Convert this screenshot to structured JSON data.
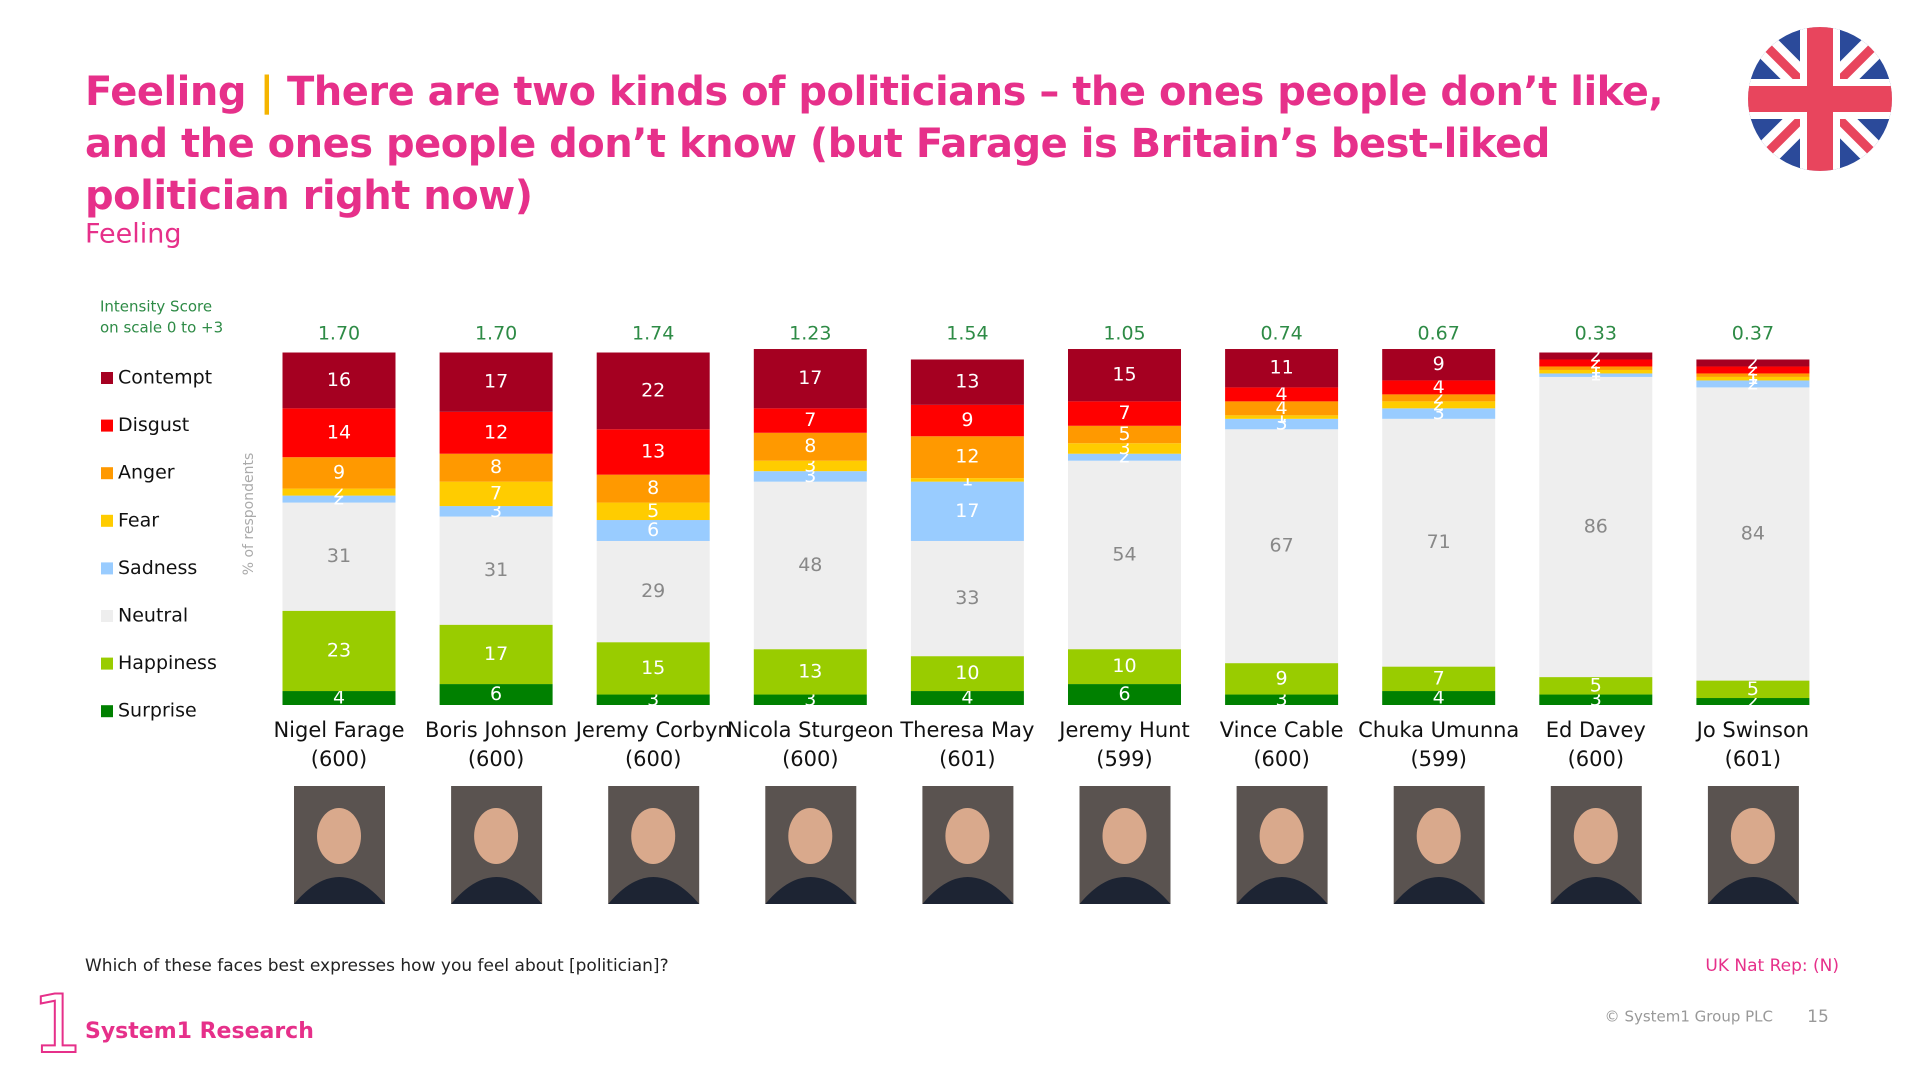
{
  "header": {
    "title_prefix": "Feeling",
    "separator": "|",
    "title": "There are two kinds of politicians – the ones people don’t like, and the ones people don’t know (but Farage is Britain’s best-liked politician right now)"
  },
  "chart_data": {
    "type": "stacked-bar",
    "subtitle": "Feeling",
    "score_label": [
      "Intensity Score",
      "on scale 0 to +3"
    ],
    "y_label": "% of respondents",
    "categories": [
      "Nigel Farage",
      "Boris Johnson",
      "Jeremy Corbyn",
      "Nicola Sturgeon",
      "Theresa May",
      "Jeremy Hunt",
      "Vince Cable",
      "Chuka Umunna",
      "Ed Davey",
      "Jo Swinson"
    ],
    "sample_sizes": [
      "(600)",
      "(600)",
      "(600)",
      "(600)",
      "(601)",
      "(599)",
      "(600)",
      "(599)",
      "(600)",
      "(601)"
    ],
    "intensity_scores": [
      1.7,
      1.7,
      1.74,
      1.23,
      1.54,
      1.05,
      0.74,
      0.67,
      0.33,
      0.37
    ],
    "intensity_labels": [
      "1.70",
      "1.70",
      "1.74",
      "1.23",
      "1.54",
      "1.05",
      "0.74",
      "0.67",
      "0.33",
      "0.37"
    ],
    "ylim": [
      0,
      100
    ],
    "series": [
      {
        "name": "Contempt",
        "color": "#a50021",
        "values": [
          16,
          17,
          22,
          17,
          13,
          15,
          11,
          9,
          2,
          2
        ]
      },
      {
        "name": "Disgust",
        "color": "#ff0000",
        "values": [
          14,
          12,
          13,
          7,
          9,
          7,
          4,
          4,
          2,
          2
        ]
      },
      {
        "name": "Anger",
        "color": "#ff9900",
        "values": [
          9,
          8,
          8,
          8,
          12,
          5,
          4,
          2,
          1,
          1
        ]
      },
      {
        "name": "Fear",
        "color": "#ffcc00",
        "values": [
          2,
          7,
          5,
          3,
          1,
          3,
          1,
          2,
          1,
          1
        ]
      },
      {
        "name": "Sadness",
        "color": "#99ccff",
        "values": [
          2,
          3,
          6,
          3,
          17,
          2,
          3,
          3,
          1,
          2
        ]
      },
      {
        "name": "Neutral",
        "color": "#eeeeee",
        "values": [
          31,
          31,
          29,
          48,
          33,
          54,
          67,
          71,
          86,
          84
        ]
      },
      {
        "name": "Happiness",
        "color": "#99cc00",
        "values": [
          23,
          17,
          15,
          13,
          10,
          10,
          9,
          7,
          5,
          5
        ]
      },
      {
        "name": "Surprise",
        "color": "#008000",
        "values": [
          4,
          6,
          3,
          3,
          4,
          6,
          3,
          4,
          3,
          2
        ]
      }
    ]
  },
  "footer": {
    "question": "Which of these faces best expresses how you feel about [politician]?",
    "base": "UK Nat Rep: (N)",
    "copyright": "© System1 Group PLC",
    "page": "15",
    "logo_mark": "1",
    "logo": "System1 Research"
  }
}
